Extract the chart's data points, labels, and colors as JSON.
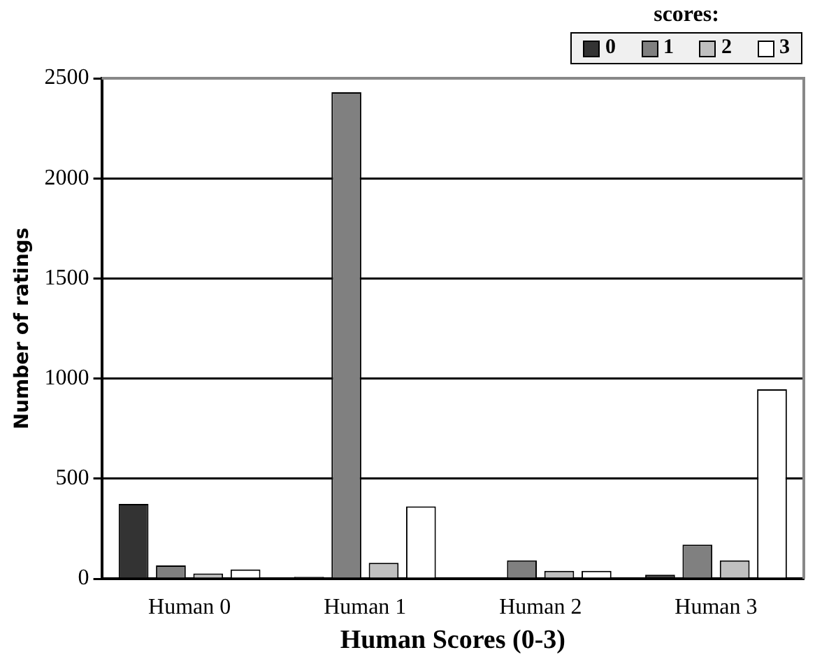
{
  "chart_data": {
    "type": "bar",
    "xlabel": "Human Scores (0-3)",
    "ylabel": "Number of ratings",
    "legend_title": "scores:",
    "categories": [
      "Human 0",
      "Human 1",
      "Human 2",
      "Human 3"
    ],
    "series": [
      {
        "name": "0",
        "color": "#333333",
        "values": [
          374,
          10,
          0,
          20
        ]
      },
      {
        "name": "1",
        "color": "#808080",
        "values": [
          66,
          2430,
          92,
          170
        ]
      },
      {
        "name": "2",
        "color": "#c0c0c0",
        "values": [
          26,
          79,
          39,
          92
        ]
      },
      {
        "name": "3",
        "color": "#ffffff",
        "values": [
          46,
          361,
          39,
          946
        ]
      }
    ],
    "ylim": [
      0,
      2500
    ],
    "yticks": [
      0,
      500,
      1000,
      1500,
      2000,
      2500
    ],
    "grid": "y",
    "legend": "top right"
  }
}
